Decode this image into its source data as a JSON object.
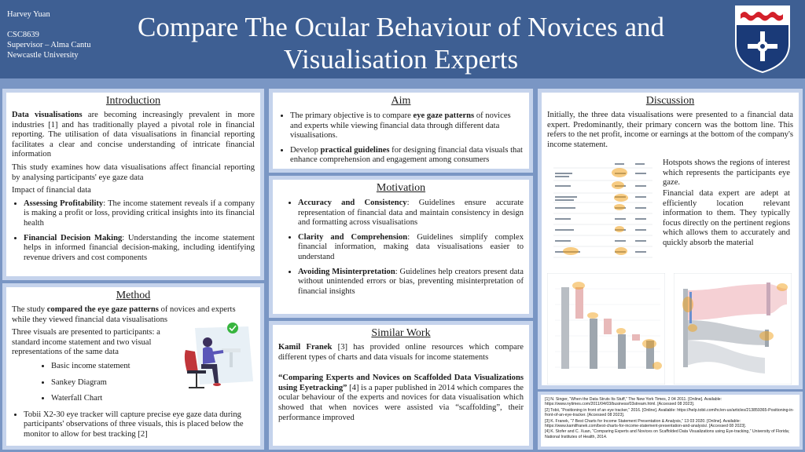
{
  "header": {
    "author_lines": [
      "Harvey Yuan",
      "",
      "CSC8639",
      "Supervisor – Alma Cantu",
      "Newcastle University"
    ],
    "title_lines": [
      "Compare The Ocular Behaviour of Novices and",
      "Visualisation Experts"
    ]
  },
  "introduction": {
    "heading": "Introduction",
    "p1_strong": "Data visualisations",
    "p1_rest": " are becoming increasingly prevalent in more industries [1] and has traditionally played a pivotal role in financial reporting. The utilisation of data visualisations in financial reporting facilitates a clear and concise understanding of intricate financial information",
    "p2": "This study examines how data visualisations affect financial reporting by analysing participants' eye gaze data",
    "subheading": "Impact of financial data",
    "bullets": [
      {
        "strong": "Assessing Profitability",
        "rest": ": The income statement reveals if a company is making a profit or loss, providing critical insights into its financial health"
      },
      {
        "strong": "Financial Decision Making",
        "rest": ": Understanding the income statement helps in informed financial decision-making, including identifying revenue drivers and cost components"
      }
    ]
  },
  "method": {
    "heading": "Method",
    "p1_pre": "The study ",
    "p1_strong": "compared the eye gaze patterns",
    "p1_post": " of novices and experts while they viewed financial data visualisations",
    "p2": "Three visuals are presented to participants: a standard income statement and two visual representations of the same data",
    "sub_items": [
      "Basic income statement",
      "Sankey Diagram",
      "Waterfall Chart"
    ],
    "bullet": "Tobii X2-30 eye tracker will capture precise eye gaze data during participants' observations of three visuals, this is placed below the monitor to allow for best tracking [2]"
  },
  "aim": {
    "heading": "Aim",
    "b1_pre": "The primary objective is to compare ",
    "b1_strong": "eye gaze patterns",
    "b1_post": " of novices and experts while viewing financial data through different data visualisations.",
    "b2_pre": "Develop ",
    "b2_strong": "practical guidelines",
    "b2_post": " for designing financial data visuals that enhance comprehension and engagement among consumers"
  },
  "motivation": {
    "heading": "Motivation",
    "bullets": [
      {
        "strong": "Accuracy and Consistency",
        "rest": ": Guidelines ensure accurate representation of financial data and maintain consistency in design and formatting across visualisations"
      },
      {
        "strong": "Clarity and Comprehension",
        "rest": ": Guidelines simplify complex financial information, making data visualisations easier to understand"
      },
      {
        "strong": "Avoiding Misinterpretation",
        "rest": ": Guidelines help creators present data without unintended errors or bias, preventing misinterpretation of financial insights"
      }
    ]
  },
  "similar": {
    "heading": "Similar Work",
    "p1_strong": "Kamil Franek",
    "p1_rest": " [3] has provided online resources which compare different types of charts and data visuals for income statements",
    "p2_quote": "“Comparing Experts and Novices on Scaffolded Data Visualizations using Eyetracking”",
    "p2_rest": " [4] is a paper published in 2014 which compares the ocular behaviour of the experts and novices for data visualisation which showed that when novices were assisted via “scaffolding”, their performance improved"
  },
  "discussion": {
    "heading": "Discussion",
    "p1": "Initially, the three data visualisations were presented to a financial data expert. Predominantly, their primary concern was the bottom line. This refers to the net profit, income or earnings at the bottom of the company's income statement.",
    "p2": "Hotspots shows the regions of interest which represents the participants eye gaze.",
    "p3": "Financial data expert are adept at efficiently location relevant information to them. They typically focus directly on the pertinent regions which allows them to accurately and quickly absorb the material"
  },
  "references": [
    "[1] N. Singer, “When the Data Struts Its Stuff,” The New York Times, 2 04 2011. [Online]. Available: https://www.nytimes.com/2011/04/03/business/03stream.html. [Accessed 08 2023].",
    "[2] Tobii, “Positioning in front of an eye tracker,” 2016. [Online]. Available: https://help.tobii.com/hc/en-us/articles/213859365-Positioning-in-front-of-an-eye-tracker. [Accessed 08 2023].",
    "[3] K. Franek, “7 Best Charts for Income Statement Presentation & Analysis,” 13 03 2020. [Online]. Available: https://www.kamilfranek.com/best-charts-for-income-statement-presentation-and-analysis/. [Accessed 08 2023].",
    "[4] K. Stofer and C. Xuan, “Comparing Experts and Novices on Scaffolded Data Visualizations using Eye-tracking,” University of Florida; National Institutes of Health, 2014."
  ],
  "colors": {
    "header": "#3e5f93",
    "panel": "#c5d3ec",
    "background": "#7a96c4",
    "hotspot": "#f2a21b",
    "crest_blue": "#1a3a78",
    "crest_red": "#d4202a"
  }
}
